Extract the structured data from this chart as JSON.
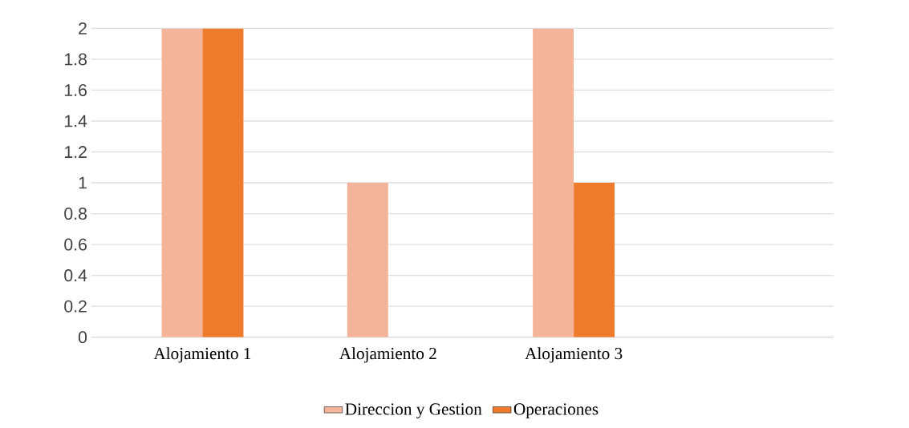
{
  "chart_data": {
    "type": "bar",
    "categories": [
      "Alojamiento 1",
      "Alojamiento 2",
      "Alojamiento 3"
    ],
    "series": [
      {
        "name": "Direccion y Gestion",
        "color": "#f3b49a",
        "values": [
          2,
          1,
          2
        ]
      },
      {
        "name": "Operaciones",
        "color": "#ee7b2c",
        "values": [
          2,
          0,
          1
        ]
      }
    ],
    "ylim": [
      0,
      2
    ],
    "yticks": [
      0,
      0.2,
      0.4,
      0.6,
      0.8,
      1,
      1.2,
      1.4,
      1.6,
      1.8,
      2
    ],
    "grid": "y",
    "legend": "bottom"
  }
}
